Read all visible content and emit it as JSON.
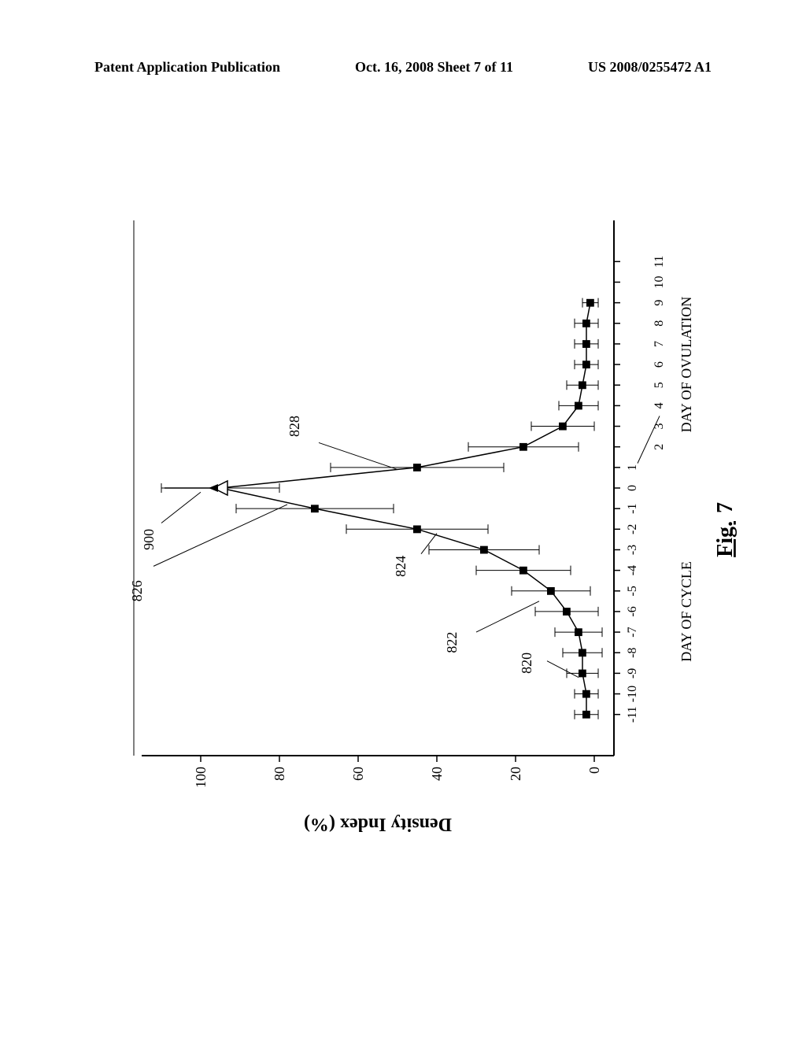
{
  "header": {
    "left": "Patent Application Publication",
    "center": "Oct. 16, 2008  Sheet 7 of 11",
    "right": "US 2008/0255472 A1"
  },
  "figure": {
    "caption_prefix": "Fig. ",
    "caption_number": "7",
    "y_axis_label": "Density Index (%)",
    "x_axis_label_1": "DAY OF CYCLE",
    "x_axis_label_2": "DAY OF OVULATION"
  },
  "annotations": {
    "a900": "900",
    "a826": "826",
    "a828": "828",
    "a824": "824",
    "a822": "822",
    "a820": "820"
  },
  "chart": {
    "type": "line-with-errorbars",
    "background_color": "#ffffff",
    "axis_color": "#000000",
    "line_color": "#000000",
    "marker_color": "#000000",
    "marker_size": 7,
    "line_width": 1.5,
    "error_bar_width": 1,
    "error_cap_width": 12,
    "x_range": [
      -13,
      13
    ],
    "y_range": [
      -5,
      115
    ],
    "y_ticks": [
      0,
      20,
      40,
      60,
      80,
      100
    ],
    "x_ticks_cycle": [
      -11,
      -10,
      -9,
      -8,
      -7,
      -6,
      -5,
      -4,
      -3,
      -2,
      -1,
      0,
      1
    ],
    "x_ticks_ovulation": [
      2,
      3,
      4,
      5,
      6,
      7,
      8,
      9,
      10,
      11
    ],
    "data_points": [
      {
        "x": -11,
        "y": 2,
        "err": 3
      },
      {
        "x": -10,
        "y": 2,
        "err": 3
      },
      {
        "x": -9,
        "y": 3,
        "err": 4
      },
      {
        "x": -8,
        "y": 3,
        "err": 5
      },
      {
        "x": -7,
        "y": 4,
        "err": 6
      },
      {
        "x": -6,
        "y": 7,
        "err": 8
      },
      {
        "x": -5,
        "y": 11,
        "err": 10
      },
      {
        "x": -4,
        "y": 18,
        "err": 12
      },
      {
        "x": -3,
        "y": 28,
        "err": 14
      },
      {
        "x": -2,
        "y": 45,
        "err": 18
      },
      {
        "x": -1,
        "y": 71,
        "err": 20
      },
      {
        "x": 0,
        "y": 95,
        "err": 15,
        "open_marker": true
      },
      {
        "x": 1,
        "y": 45,
        "err": 22
      },
      {
        "x": 2,
        "y": 18,
        "err": 14
      },
      {
        "x": 3,
        "y": 8,
        "err": 8
      },
      {
        "x": 4,
        "y": 4,
        "err": 5
      },
      {
        "x": 5,
        "y": 3,
        "err": 4
      },
      {
        "x": 6,
        "y": 2,
        "err": 3
      },
      {
        "x": 7,
        "y": 2,
        "err": 3
      },
      {
        "x": 8,
        "y": 2,
        "err": 3
      },
      {
        "x": 9,
        "y": 1,
        "err": 2
      }
    ],
    "arrow_peak_x": 0,
    "arrow_peak_y_from": 108,
    "arrow_peak_y_to": 98
  }
}
